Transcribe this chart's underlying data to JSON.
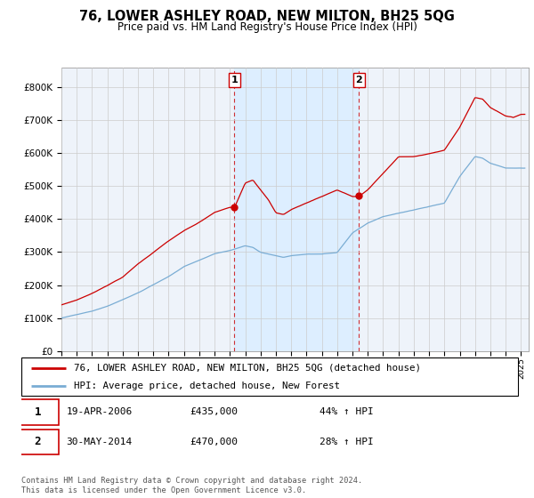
{
  "title": "76, LOWER ASHLEY ROAD, NEW MILTON, BH25 5QG",
  "subtitle": "Price paid vs. HM Land Registry's House Price Index (HPI)",
  "ylabel_ticks": [
    "£0",
    "£100K",
    "£200K",
    "£300K",
    "£400K",
    "£500K",
    "£600K",
    "£700K",
    "£800K"
  ],
  "ytick_values": [
    0,
    100000,
    200000,
    300000,
    400000,
    500000,
    600000,
    700000,
    800000
  ],
  "ylim": [
    0,
    860000
  ],
  "xlim_start": 1995.0,
  "xlim_end": 2025.5,
  "sale1_x": 2006.29,
  "sale1_y": 435000,
  "sale2_x": 2014.42,
  "sale2_y": 470000,
  "legend_line1": "76, LOWER ASHLEY ROAD, NEW MILTON, BH25 5QG (detached house)",
  "legend_line2": "HPI: Average price, detached house, New Forest",
  "red_color": "#cc0000",
  "blue_color": "#7aadd4",
  "shade_color": "#ddeeff",
  "background_color": "#eef3fa",
  "grid_color": "#cccccc",
  "footer": "Contains HM Land Registry data © Crown copyright and database right 2024.\nThis data is licensed under the Open Government Licence v3.0."
}
